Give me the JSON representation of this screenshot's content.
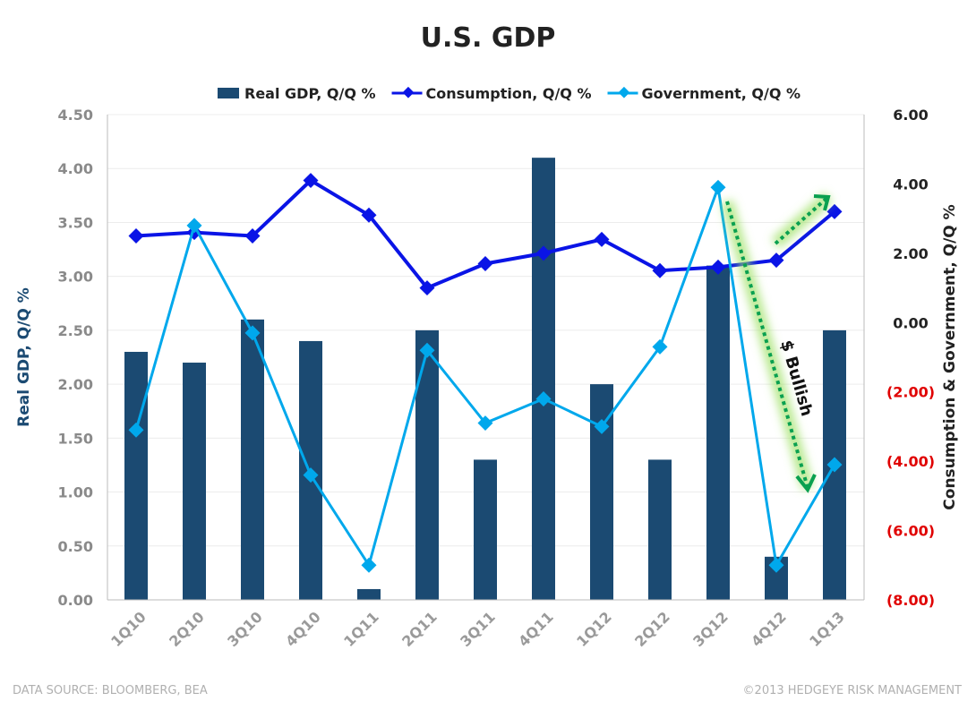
{
  "chart_data": {
    "type": "bar+line",
    "title": "U.S. GDP",
    "categories": [
      "1Q10",
      "2Q10",
      "3Q10",
      "4Q10",
      "1Q11",
      "2Q11",
      "3Q11",
      "4Q11",
      "1Q12",
      "2Q12",
      "3Q12",
      "4Q12",
      "1Q13"
    ],
    "series": [
      {
        "name": "Real GDP, Q/Q %",
        "type": "bar",
        "axis": "left",
        "color": "#1b4a72",
        "values": [
          2.3,
          2.2,
          2.6,
          2.4,
          0.1,
          2.5,
          1.3,
          4.1,
          2.0,
          1.3,
          3.1,
          0.4,
          2.5
        ]
      },
      {
        "name": "Consumption, Q/Q %",
        "type": "line",
        "axis": "right",
        "color": "#0a14e6",
        "values": [
          2.5,
          2.6,
          2.5,
          4.1,
          3.1,
          1.0,
          1.7,
          2.0,
          2.4,
          1.5,
          1.6,
          1.8,
          3.2
        ]
      },
      {
        "name": "Government, Q/Q %",
        "type": "line",
        "axis": "right",
        "color": "#00a8ec",
        "values": [
          -3.1,
          2.8,
          -0.3,
          -4.4,
          -7.0,
          -0.8,
          -2.9,
          -2.2,
          -3.0,
          -0.7,
          3.9,
          -7.0,
          -4.1
        ]
      }
    ],
    "ylabel": "Real GDP, Q/Q %",
    "ylabel_right": "Consumption & Government, Q/Q %",
    "ylim": [
      0,
      4.5
    ],
    "ylim_right": [
      -8,
      6
    ],
    "yticks": [
      "0.00",
      "0.50",
      "1.00",
      "1.50",
      "2.00",
      "2.50",
      "3.00",
      "3.50",
      "4.00",
      "4.50"
    ],
    "yticks_right": [
      "(8.00)",
      "(6.00)",
      "(4.00)",
      "(2.00)",
      "0.00",
      "2.00",
      "4.00",
      "6.00"
    ],
    "negative_tick_color": "#e00000",
    "annotation": "$ Bullish",
    "annotation_color": "#0aa050",
    "legend_position": "top",
    "grid": true
  },
  "footer": {
    "source": "DATA SOURCE: BLOOMBERG, BEA",
    "copyright": "©2013 HEDGEYE RISK MANAGEMENT"
  }
}
